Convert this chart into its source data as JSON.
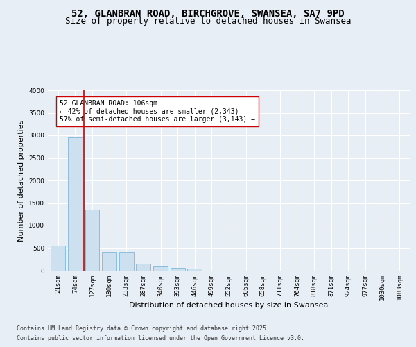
{
  "title_line1": "52, GLANBRAN ROAD, BIRCHGROVE, SWANSEA, SA7 9PD",
  "title_line2": "Size of property relative to detached houses in Swansea",
  "xlabel": "Distribution of detached houses by size in Swansea",
  "ylabel": "Number of detached properties",
  "categories": [
    "21sqm",
    "74sqm",
    "127sqm",
    "180sqm",
    "233sqm",
    "287sqm",
    "340sqm",
    "393sqm",
    "446sqm",
    "499sqm",
    "552sqm",
    "605sqm",
    "658sqm",
    "711sqm",
    "764sqm",
    "818sqm",
    "871sqm",
    "924sqm",
    "977sqm",
    "1030sqm",
    "1083sqm"
  ],
  "values": [
    560,
    2960,
    1350,
    415,
    415,
    155,
    90,
    60,
    40,
    0,
    0,
    0,
    0,
    0,
    0,
    0,
    0,
    0,
    0,
    0,
    0
  ],
  "bar_color": "#cce0f0",
  "bar_edge_color": "#6baed6",
  "vline_x": 1.5,
  "vline_color": "#cc0000",
  "annotation_text": "52 GLANBRAN ROAD: 106sqm\n← 42% of detached houses are smaller (2,343)\n57% of semi-detached houses are larger (3,143) →",
  "annotation_box_color": "#ffffff",
  "annotation_box_edge": "#cc0000",
  "ylim": [
    0,
    4000
  ],
  "yticks": [
    0,
    500,
    1000,
    1500,
    2000,
    2500,
    3000,
    3500,
    4000
  ],
  "bg_color": "#e8eef5",
  "plot_bg_color": "#e8eef5",
  "grid_color": "#ffffff",
  "footer_line1": "Contains HM Land Registry data © Crown copyright and database right 2025.",
  "footer_line2": "Contains public sector information licensed under the Open Government Licence v3.0.",
  "title_fontsize": 10,
  "subtitle_fontsize": 9,
  "axis_label_fontsize": 8,
  "tick_fontsize": 6.5,
  "annotation_fontsize": 7,
  "footer_fontsize": 6
}
